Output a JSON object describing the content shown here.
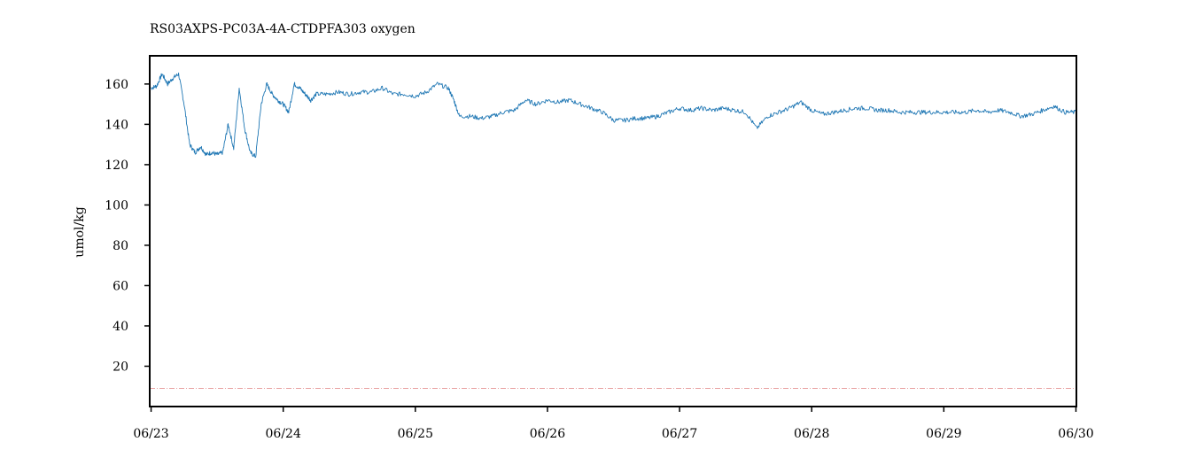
{
  "chart_data": {
    "type": "line",
    "title": "RS03AXPS-PC03A-4A-CTDPFA303 oxygen",
    "ylabel": "umol/kg",
    "xlabel": "",
    "ylim": [
      0,
      174
    ],
    "xlim": [
      "2023-06-22T23:45",
      "2023-06-30T00:05"
    ],
    "x_ticks": [
      "06/23",
      "06/24",
      "06/25",
      "06/26",
      "06/27",
      "06/28",
      "06/29",
      "06/30"
    ],
    "y_ticks": [
      20,
      40,
      60,
      80,
      100,
      120,
      140,
      160
    ],
    "grid": false,
    "series": [
      {
        "color": "#1f77b4",
        "points": [
          [
            "2023-06-23T00:00",
            158
          ],
          [
            "2023-06-23T01:00",
            159
          ],
          [
            "2023-06-23T02:00",
            165
          ],
          [
            "2023-06-23T03:00",
            160
          ],
          [
            "2023-06-23T04:00",
            163
          ],
          [
            "2023-06-23T05:00",
            165
          ],
          [
            "2023-06-23T06:00",
            150
          ],
          [
            "2023-06-23T07:00",
            130
          ],
          [
            "2023-06-23T08:00",
            126
          ],
          [
            "2023-06-23T09:00",
            129
          ],
          [
            "2023-06-23T10:00",
            125
          ],
          [
            "2023-06-23T11:00",
            126
          ],
          [
            "2023-06-23T12:00",
            125
          ],
          [
            "2023-06-23T13:00",
            126
          ],
          [
            "2023-06-23T14:00",
            140
          ],
          [
            "2023-06-23T15:00",
            128
          ],
          [
            "2023-06-23T16:00",
            158
          ],
          [
            "2023-06-23T17:00",
            138
          ],
          [
            "2023-06-23T18:00",
            126
          ],
          [
            "2023-06-23T19:00",
            124
          ],
          [
            "2023-06-23T20:00",
            150
          ],
          [
            "2023-06-23T21:00",
            160
          ],
          [
            "2023-06-23T22:00",
            155
          ],
          [
            "2023-06-23T23:00",
            152
          ],
          [
            "2023-06-24T00:00",
            150
          ],
          [
            "2023-06-24T01:00",
            146
          ],
          [
            "2023-06-24T02:00",
            160
          ],
          [
            "2023-06-24T03:00",
            158
          ],
          [
            "2023-06-24T04:00",
            155
          ],
          [
            "2023-06-24T05:00",
            152
          ],
          [
            "2023-06-24T06:00",
            155
          ],
          [
            "2023-06-24T08:00",
            155
          ],
          [
            "2023-06-24T10:00",
            156
          ],
          [
            "2023-06-24T12:00",
            155
          ],
          [
            "2023-06-24T14:00",
            156
          ],
          [
            "2023-06-24T16:00",
            156
          ],
          [
            "2023-06-24T18:00",
            158
          ],
          [
            "2023-06-24T20:00",
            155
          ],
          [
            "2023-06-24T22:00",
            155
          ],
          [
            "2023-06-25T00:00",
            154
          ],
          [
            "2023-06-25T02:00",
            156
          ],
          [
            "2023-06-25T04:00",
            160
          ],
          [
            "2023-06-25T06:00",
            158
          ],
          [
            "2023-06-25T07:00",
            152
          ],
          [
            "2023-06-25T08:00",
            144
          ],
          [
            "2023-06-25T10:00",
            144
          ],
          [
            "2023-06-25T12:00",
            143
          ],
          [
            "2023-06-25T14:00",
            144
          ],
          [
            "2023-06-25T16:00",
            146
          ],
          [
            "2023-06-25T18:00",
            147
          ],
          [
            "2023-06-25T20:00",
            152
          ],
          [
            "2023-06-25T22:00",
            150
          ],
          [
            "2023-06-26T00:00",
            152
          ],
          [
            "2023-06-26T02:00",
            151
          ],
          [
            "2023-06-26T04:00",
            152
          ],
          [
            "2023-06-26T06:00",
            150
          ],
          [
            "2023-06-26T08:00",
            148
          ],
          [
            "2023-06-26T10:00",
            146
          ],
          [
            "2023-06-26T12:00",
            142
          ],
          [
            "2023-06-26T14:00",
            142
          ],
          [
            "2023-06-26T16:00",
            143
          ],
          [
            "2023-06-26T18:00",
            143
          ],
          [
            "2023-06-26T20:00",
            144
          ],
          [
            "2023-06-26T22:00",
            146
          ],
          [
            "2023-06-27T00:00",
            148
          ],
          [
            "2023-06-27T02:00",
            147
          ],
          [
            "2023-06-27T04:00",
            148
          ],
          [
            "2023-06-27T06:00",
            147
          ],
          [
            "2023-06-27T08:00",
            148
          ],
          [
            "2023-06-27T10:00",
            147
          ],
          [
            "2023-06-27T12:00",
            146
          ],
          [
            "2023-06-27T14:00",
            138
          ],
          [
            "2023-06-27T16:00",
            144
          ],
          [
            "2023-06-27T18:00",
            146
          ],
          [
            "2023-06-27T20:00",
            148
          ],
          [
            "2023-06-27T22:00",
            151
          ],
          [
            "2023-06-28T00:00",
            147
          ],
          [
            "2023-06-28T02:00",
            145
          ],
          [
            "2023-06-28T04:00",
            146
          ],
          [
            "2023-06-28T06:00",
            147
          ],
          [
            "2023-06-28T08:00",
            148
          ],
          [
            "2023-06-28T10:00",
            148
          ],
          [
            "2023-06-28T12:00",
            147
          ],
          [
            "2023-06-28T14:00",
            147
          ],
          [
            "2023-06-28T16:00",
            146
          ],
          [
            "2023-06-28T18:00",
            146
          ],
          [
            "2023-06-28T20:00",
            146
          ],
          [
            "2023-06-28T22:00",
            146
          ],
          [
            "2023-06-29T00:00",
            146
          ],
          [
            "2023-06-29T02:00",
            146
          ],
          [
            "2023-06-29T04:00",
            146
          ],
          [
            "2023-06-29T06:00",
            147
          ],
          [
            "2023-06-29T08:00",
            146
          ],
          [
            "2023-06-29T10:00",
            147
          ],
          [
            "2023-06-29T12:00",
            146
          ],
          [
            "2023-06-29T14:00",
            144
          ],
          [
            "2023-06-29T16:00",
            145
          ],
          [
            "2023-06-29T18:00",
            147
          ],
          [
            "2023-06-29T20:00",
            149
          ],
          [
            "2023-06-29T22:00",
            146
          ],
          [
            "2023-06-30T00:00",
            146
          ]
        ]
      },
      {
        "color": "#e8a0a0",
        "style": "dashdot",
        "points": [
          [
            "2023-06-22T23:45",
            9
          ],
          [
            "2023-06-30T00:05",
            9
          ]
        ]
      }
    ]
  }
}
